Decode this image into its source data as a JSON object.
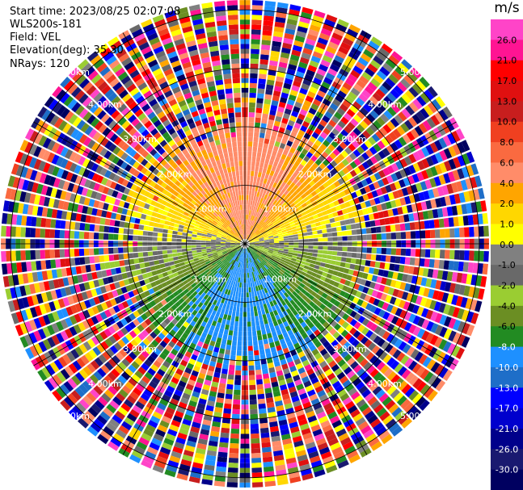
{
  "header": {
    "start_time": "Start time: 2023/08/25 02:07:08",
    "instrument": "WLS200s-181",
    "field": "Field: VEL",
    "elevation": "Elevation(deg): 35.30",
    "nrays": "NRays: 120"
  },
  "chart_data": {
    "type": "heatmap",
    "projection": "polar-ppi",
    "field": "VEL",
    "units": "m/s",
    "nrays": 120,
    "elevation_deg": 35.3,
    "range_max_km": 5.0,
    "range_ring_labels_km": [
      "1.00km",
      "2.00km",
      "3.00km",
      "4.00km",
      "5.00km"
    ],
    "grid": true,
    "colorbar": {
      "placement": "right",
      "unit_label": "m/s",
      "tick_labels": [
        "26.0",
        "21.0",
        "17.0",
        "13.0",
        "10.0",
        "8.0",
        "6.0",
        "4.0",
        "2.0",
        "1.0",
        "0.0",
        "-1.0",
        "-2.0",
        "-4.0",
        "-6.0",
        "-8.0",
        "-10.0",
        "-13.0",
        "-17.0",
        "-21.0",
        "-26.0",
        "-30.0"
      ],
      "colors": [
        "#ff44c8",
        "#ff1493",
        "#ff0000",
        "#e01010",
        "#c81e1e",
        "#f04020",
        "#fa6a40",
        "#ff8c69",
        "#ffa500",
        "#ffd700",
        "#ffff00",
        "#808080",
        "#696969",
        "#9acd32",
        "#6b8e23",
        "#228b22",
        "#1e90ff",
        "#1e6ec8",
        "#0000ff",
        "#0000cd",
        "#00008b",
        "#191970",
        "#000060"
      ]
    }
  }
}
